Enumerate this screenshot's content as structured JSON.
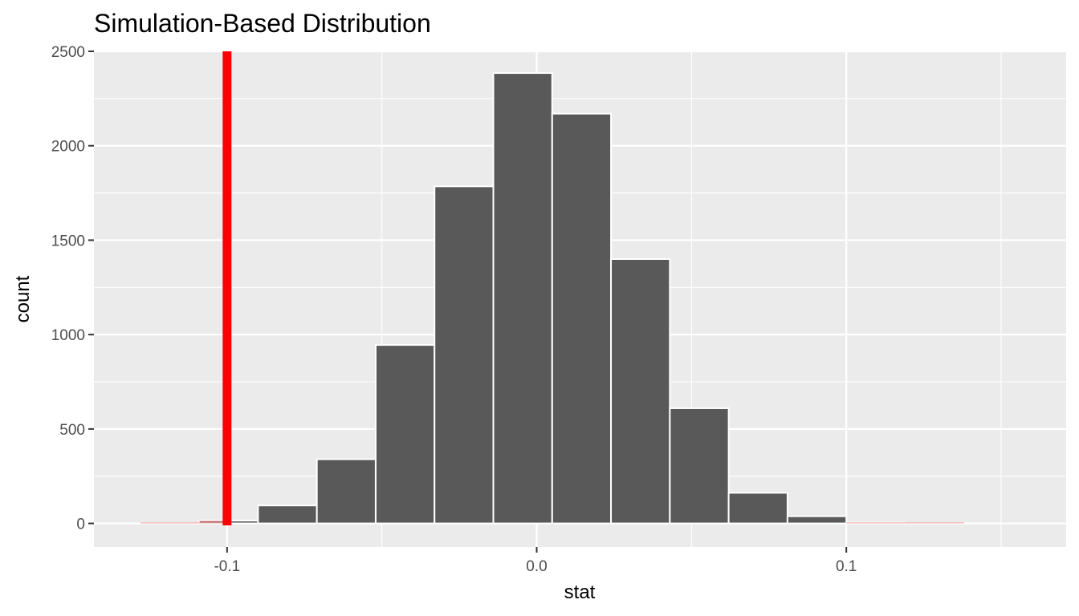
{
  "chart_data": {
    "type": "bar",
    "title": "Simulation-Based Distribution",
    "xlabel": "stat",
    "ylabel": "count",
    "xlim": [
      -0.143,
      0.171
    ],
    "ylim": [
      -125,
      2500
    ],
    "x_ticks": [
      {
        "value": -0.1,
        "label": "-0.1"
      },
      {
        "value": 0.0,
        "label": "0.0"
      },
      {
        "value": 0.1,
        "label": "0.1"
      }
    ],
    "y_ticks": [
      {
        "value": 0,
        "label": "0"
      },
      {
        "value": 500,
        "label": "500"
      },
      {
        "value": 1000,
        "label": "1000"
      },
      {
        "value": 1500,
        "label": "1500"
      },
      {
        "value": 2000,
        "label": "2000"
      },
      {
        "value": 2500,
        "label": "2500"
      }
    ],
    "bin_width": 0.019,
    "bins": [
      {
        "x0": -0.128,
        "x1": -0.109,
        "count": 2
      },
      {
        "x0": -0.109,
        "x1": -0.09,
        "count": 15
      },
      {
        "x0": -0.09,
        "x1": -0.071,
        "count": 95
      },
      {
        "x0": -0.071,
        "x1": -0.052,
        "count": 340
      },
      {
        "x0": -0.052,
        "x1": -0.033,
        "count": 945
      },
      {
        "x0": -0.033,
        "x1": -0.014,
        "count": 1785
      },
      {
        "x0": -0.014,
        "x1": 0.005,
        "count": 2385
      },
      {
        "x0": 0.005,
        "x1": 0.024,
        "count": 2170
      },
      {
        "x0": 0.024,
        "x1": 0.043,
        "count": 1400
      },
      {
        "x0": 0.043,
        "x1": 0.062,
        "count": 610
      },
      {
        "x0": 0.062,
        "x1": 0.081,
        "count": 162
      },
      {
        "x0": 0.081,
        "x1": 0.1,
        "count": 38
      },
      {
        "x0": 0.1,
        "x1": 0.119,
        "count": 5
      },
      {
        "x0": 0.119,
        "x1": 0.138,
        "count": 1
      }
    ],
    "observed_stat": -0.1,
    "shade_direction": "two-sided",
    "colors": {
      "panel_background": "#ebebeb",
      "grid": "#ffffff",
      "bar_fill": "#595959",
      "bar_outline": "#ffffff",
      "observed_line": "#ff0000",
      "shade": "#f08080"
    },
    "grid": true,
    "legend": "none"
  }
}
